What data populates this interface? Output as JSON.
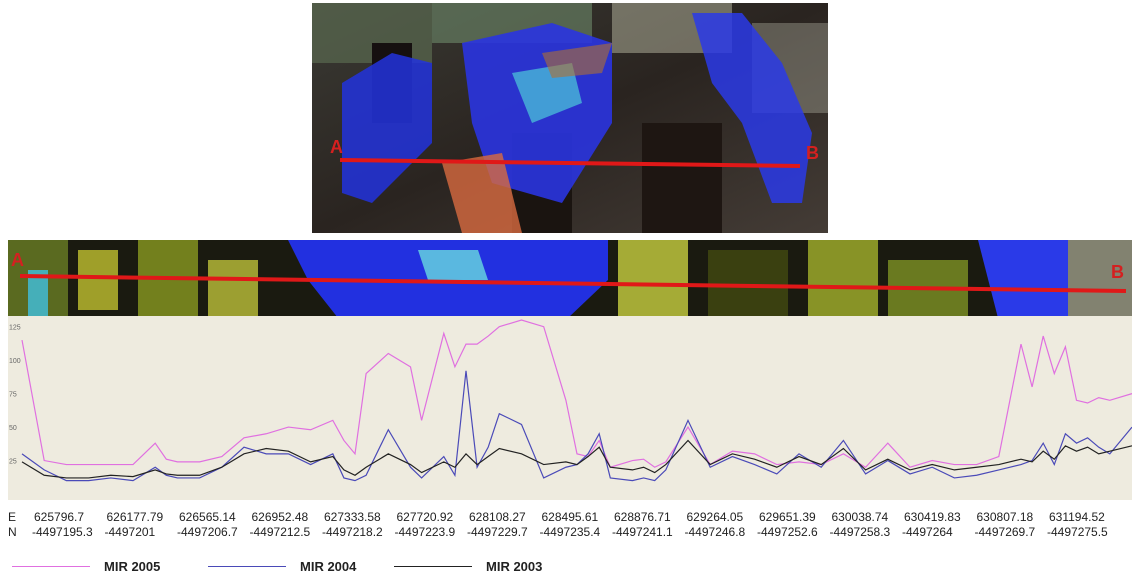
{
  "images": {
    "top": {
      "label_a": "A",
      "label_b": "B"
    },
    "strip": {
      "label_a": "A",
      "label_b": "B"
    }
  },
  "colors": {
    "profile_line": "#e01818",
    "mir_2005": "#e070e0",
    "mir_2004": "#4a4ab8",
    "mir_2003": "#222222",
    "chart_bg": "#eeebdf"
  },
  "axis": {
    "e_label": "E",
    "n_label": "N",
    "ticks": [
      {
        "e": "625796.7",
        "n": "-4497195.3"
      },
      {
        "e": "626177.79",
        "n": "-4497201"
      },
      {
        "e": "626565.14",
        "n": "-4497206.7"
      },
      {
        "e": "626952.48",
        "n": "-4497212.5"
      },
      {
        "e": "627333.58",
        "n": "-4497218.2"
      },
      {
        "e": "627720.92",
        "n": "-4497223.9"
      },
      {
        "e": "628108.27",
        "n": "-4497229.7"
      },
      {
        "e": "628495.61",
        "n": "-4497235.4"
      },
      {
        "e": "628876.71",
        "n": "-4497241.1"
      },
      {
        "e": "629264.05",
        "n": "-4497246.8"
      },
      {
        "e": "629651.39",
        "n": "-4497252.6"
      },
      {
        "e": "630038.74",
        "n": "-4497258.3"
      },
      {
        "e": "630419.83",
        "n": "-4497264"
      },
      {
        "e": "630807.18",
        "n": "-4497269.7"
      },
      {
        "e": "631194.52",
        "n": "-4497275.5"
      }
    ]
  },
  "legend": [
    {
      "label": "MIR 2005",
      "color": "#e070e0"
    },
    {
      "label": "MIR 2004",
      "color": "#4a4ab8"
    },
    {
      "label": "MIR 2003",
      "color": "#222222"
    }
  ],
  "chart_data": {
    "type": "line",
    "xlabel": "",
    "ylabel": "",
    "yticks": [
      "125",
      "100",
      "75",
      "50",
      "25"
    ],
    "ylim": [
      0,
      130
    ],
    "x": [
      0,
      0.02,
      0.04,
      0.06,
      0.08,
      0.1,
      0.12,
      0.13,
      0.14,
      0.16,
      0.18,
      0.2,
      0.22,
      0.24,
      0.26,
      0.28,
      0.29,
      0.3,
      0.31,
      0.33,
      0.35,
      0.36,
      0.38,
      0.39,
      0.4,
      0.41,
      0.42,
      0.43,
      0.45,
      0.47,
      0.49,
      0.5,
      0.51,
      0.52,
      0.53,
      0.55,
      0.56,
      0.57,
      0.58,
      0.6,
      0.62,
      0.64,
      0.66,
      0.68,
      0.7,
      0.72,
      0.74,
      0.76,
      0.78,
      0.8,
      0.82,
      0.84,
      0.86,
      0.88,
      0.9,
      0.91,
      0.92,
      0.93,
      0.94,
      0.95,
      0.96,
      0.97,
      0.98,
      1.0
    ],
    "series": [
      {
        "name": "MIR 2005",
        "values": [
          115,
          25,
          22,
          22,
          22,
          22,
          38,
          26,
          24,
          24,
          28,
          42,
          45,
          50,
          48,
          55,
          40,
          30,
          90,
          105,
          95,
          55,
          120,
          95,
          112,
          112,
          118,
          125,
          132,
          125,
          70,
          30,
          28,
          40,
          20,
          25,
          26,
          20,
          24,
          50,
          22,
          32,
          30,
          22,
          24,
          22,
          30,
          20,
          38,
          20,
          25,
          22,
          22,
          28,
          112,
          80,
          118,
          90,
          110,
          70,
          68,
          72,
          70,
          75
        ]
      },
      {
        "name": "MIR 2004",
        "values": [
          30,
          18,
          10,
          10,
          12,
          10,
          20,
          14,
          12,
          12,
          20,
          35,
          30,
          30,
          22,
          30,
          12,
          10,
          14,
          48,
          20,
          12,
          28,
          14,
          92,
          20,
          35,
          60,
          52,
          12,
          20,
          22,
          30,
          45,
          12,
          10,
          12,
          10,
          18,
          55,
          20,
          28,
          22,
          15,
          30,
          20,
          40,
          15,
          25,
          15,
          20,
          12,
          14,
          18,
          22,
          25,
          38,
          22,
          45,
          38,
          42,
          35,
          30,
          50
        ]
      },
      {
        "name": "MIR 2003",
        "values": [
          24,
          14,
          12,
          12,
          14,
          13,
          18,
          15,
          14,
          14,
          20,
          30,
          34,
          32,
          24,
          28,
          18,
          14,
          20,
          30,
          22,
          16,
          24,
          20,
          30,
          22,
          28,
          34,
          30,
          22,
          24,
          22,
          28,
          35,
          20,
          18,
          20,
          16,
          22,
          40,
          22,
          30,
          26,
          20,
          28,
          22,
          34,
          18,
          26,
          18,
          22,
          18,
          20,
          22,
          26,
          24,
          32,
          26,
          36,
          32,
          35,
          30,
          32,
          36
        ]
      }
    ]
  }
}
